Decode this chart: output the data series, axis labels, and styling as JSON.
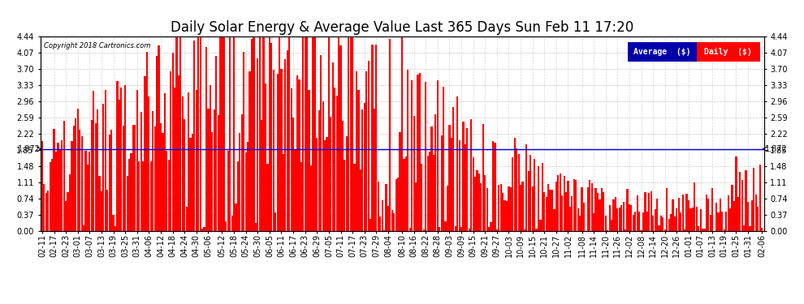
{
  "title": "Daily Solar Energy & Average Value Last 365 Days Sun Feb 11 17:20",
  "copyright": "Copyright 2018 Cartronics.com",
  "average_value": 1.872,
  "average_label": "1.872",
  "ylim": [
    0,
    4.44
  ],
  "yticks": [
    0.0,
    0.37,
    0.74,
    1.11,
    1.48,
    1.85,
    2.22,
    2.59,
    2.96,
    3.33,
    3.7,
    4.07,
    4.44
  ],
  "bar_color": "#FF0000",
  "average_line_color": "#0000FF",
  "background_color": "#FFFFFF",
  "grid_color": "#BBBBBB",
  "legend_avg_bg": "#0000AA",
  "legend_daily_bg": "#FF0000",
  "legend_text_color": "#FFFFFF",
  "title_fontsize": 12,
  "tick_fontsize": 7,
  "xlabel_dates": [
    "02-11",
    "02-17",
    "02-23",
    "03-01",
    "03-07",
    "03-13",
    "03-19",
    "03-25",
    "03-31",
    "04-06",
    "04-12",
    "04-18",
    "04-24",
    "04-30",
    "05-06",
    "05-12",
    "05-18",
    "05-24",
    "05-30",
    "06-05",
    "06-11",
    "06-17",
    "06-23",
    "06-29",
    "07-05",
    "07-11",
    "07-17",
    "07-23",
    "07-29",
    "08-04",
    "08-10",
    "08-16",
    "08-22",
    "08-28",
    "09-03",
    "09-09",
    "09-15",
    "09-21",
    "09-27",
    "10-03",
    "10-09",
    "10-15",
    "10-21",
    "10-27",
    "11-02",
    "11-08",
    "11-14",
    "11-20",
    "11-26",
    "12-02",
    "12-08",
    "12-14",
    "12-20",
    "12-26",
    "01-01",
    "01-07",
    "01-13",
    "01-19",
    "01-25",
    "01-31",
    "02-06"
  ],
  "seed": 12345
}
